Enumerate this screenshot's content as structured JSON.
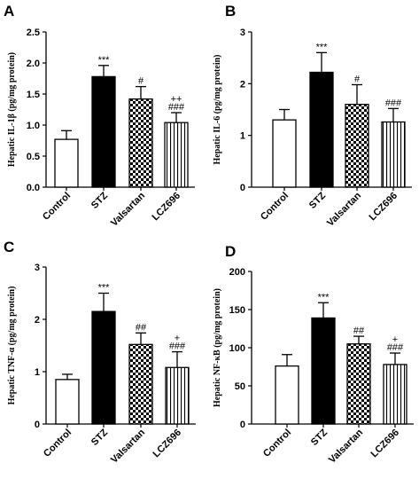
{
  "chart_data": [
    {
      "type": "bar",
      "panel_label": "A",
      "ylabel": "Hepatic IL-1β (pg/mg protein)",
      "ylim": [
        0,
        2.5
      ],
      "yticks": [
        "0.0",
        "0.5",
        "1.0",
        "1.5",
        "2.0",
        "2.5"
      ],
      "categories": [
        "Control",
        "STZ",
        "Valsartan",
        "LCZ696"
      ],
      "values": [
        0.77,
        1.78,
        1.42,
        1.04
      ],
      "errors": [
        0.14,
        0.18,
        0.2,
        0.16
      ],
      "annotations": [
        "",
        "***",
        "#",
        "++\n###"
      ]
    },
    {
      "type": "bar",
      "panel_label": "B",
      "ylabel": "Hepatic IL-6 (pg/mg protein)",
      "ylim": [
        0,
        3
      ],
      "yticks": [
        "0",
        "1",
        "2",
        "3"
      ],
      "categories": [
        "Control",
        "STZ",
        "Valsartan",
        "LCZ696"
      ],
      "values": [
        1.3,
        2.22,
        1.6,
        1.26
      ],
      "errors": [
        0.2,
        0.38,
        0.38,
        0.26
      ],
      "annotations": [
        "",
        "***",
        "#",
        "###"
      ]
    },
    {
      "type": "bar",
      "panel_label": "C",
      "ylabel": "Hepatic TNF-α (pg/mg protein)",
      "ylim": [
        0,
        3
      ],
      "yticks": [
        "0",
        "1",
        "2",
        "3"
      ],
      "categories": [
        "Control",
        "STZ",
        "Valsartan",
        "LCZ696"
      ],
      "values": [
        0.85,
        2.15,
        1.52,
        1.08
      ],
      "errors": [
        0.1,
        0.35,
        0.22,
        0.3
      ],
      "annotations": [
        "",
        "***",
        "##",
        "+\n###"
      ]
    },
    {
      "type": "bar",
      "panel_label": "D",
      "ylabel": "Hepatic NF-κB (pg/mg protein)",
      "ylim": [
        0,
        200
      ],
      "yticks": [
        "0",
        "50",
        "100",
        "150",
        "200"
      ],
      "categories": [
        "Control",
        "STZ",
        "Valsartan",
        "LCZ696"
      ],
      "values": [
        76,
        139,
        105,
        78
      ],
      "errors": [
        15,
        20,
        10,
        15
      ],
      "annotations": [
        "",
        "***",
        "##",
        "+\n###"
      ]
    }
  ],
  "styles": {
    "fills": [
      "white",
      "black",
      "checker",
      "vertical-lines"
    ],
    "color": "#000000"
  }
}
